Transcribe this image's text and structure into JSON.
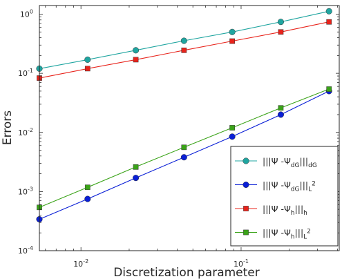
{
  "chart_data": {
    "type": "line",
    "xscale": "log",
    "yscale": "log",
    "xlabel": "Discretization parameter",
    "ylabel": "Errors",
    "xlim": [
      0.0055,
      0.41
    ],
    "ylim": [
      0.0001,
      1.4
    ],
    "x_ticks": [
      {
        "value": 0.01,
        "base": "10",
        "exp": "-2"
      },
      {
        "value": 0.1,
        "base": "10",
        "exp": "-1"
      }
    ],
    "y_ticks": [
      {
        "value": 0.0001,
        "base": "10",
        "exp": "-4"
      },
      {
        "value": 0.001,
        "base": "10",
        "exp": "-3"
      },
      {
        "value": 0.01,
        "base": "10",
        "exp": "-2"
      },
      {
        "value": 0.1,
        "base": "10",
        "exp": "-1"
      },
      {
        "value": 1,
        "base": "10",
        "exp": "0"
      }
    ],
    "grid": false,
    "legend_position": "bottom-right",
    "x": [
      0.0055,
      0.011,
      0.022,
      0.044,
      0.088,
      0.177,
      0.354
    ],
    "series": [
      {
        "legend_parts": [
          {
            "t": "|||Ψ -Ψ"
          },
          {
            "t": "dG",
            "sub": true
          },
          {
            "t": "|||"
          },
          {
            "t": "dG",
            "sub": true
          }
        ],
        "color": "#1fa5a0",
        "marker": "circle",
        "values": [
          0.12,
          0.17,
          0.245,
          0.355,
          0.5,
          0.74,
          1.12
        ]
      },
      {
        "legend_parts": [
          {
            "t": "|||Ψ -Ψ"
          },
          {
            "t": "dG",
            "sub": true
          },
          {
            "t": "|||"
          },
          {
            "t": "L",
            "sub": true
          },
          {
            "t": "2",
            "sup": true
          }
        ],
        "color": "#0a1fd6",
        "marker": "circle",
        "values": [
          0.00034,
          0.00075,
          0.0017,
          0.0038,
          0.0085,
          0.02,
          0.05
        ]
      },
      {
        "legend_parts": [
          {
            "t": "|||Ψ -Ψ"
          },
          {
            "t": "h",
            "sub": true
          },
          {
            "t": "|||"
          },
          {
            "t": "h",
            "sub": true
          }
        ],
        "color": "#e8231b",
        "marker": "square",
        "values": [
          0.083,
          0.12,
          0.17,
          0.245,
          0.35,
          0.5,
          0.74
        ]
      },
      {
        "legend_parts": [
          {
            "t": "|||Ψ -Ψ"
          },
          {
            "t": "h",
            "sub": true
          },
          {
            "t": "|||"
          },
          {
            "t": "L",
            "sub": true
          },
          {
            "t": "2",
            "sup": true
          }
        ],
        "color": "#3aa318",
        "marker": "square",
        "values": [
          0.00054,
          0.00118,
          0.0026,
          0.0056,
          0.012,
          0.026,
          0.054
        ]
      }
    ]
  }
}
